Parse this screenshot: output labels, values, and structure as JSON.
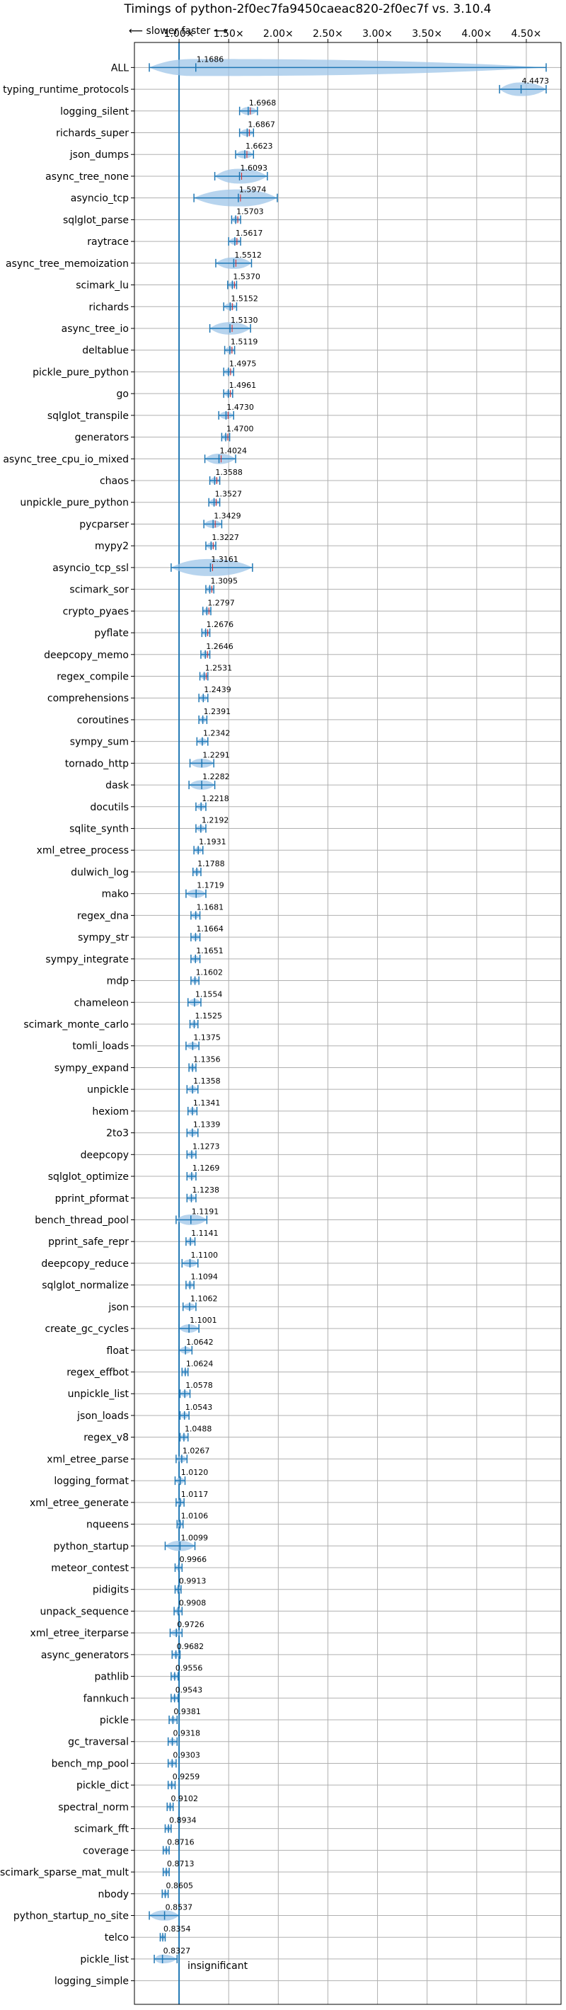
{
  "chart_data": {
    "type": "violin",
    "title": "Timings of python-2f0ec7fa9450caeac820-2f0ec7f vs. 3.10.4",
    "direction_label": "⟵ slower    faster ⟶",
    "x_ticks": [
      "1.00×",
      "1.50×",
      "2.00×",
      "2.50×",
      "3.00×",
      "3.50×",
      "4.00×",
      "4.50×"
    ],
    "x_tick_values": [
      1.0,
      1.5,
      2.0,
      2.5,
      3.0,
      3.5,
      4.0,
      4.5
    ],
    "xlim": [
      0.55,
      4.85
    ],
    "grid": true,
    "reference_line": 1.0,
    "reference_label": "insignificant",
    "colors": {
      "violin": "#9fc6e8",
      "line": "#1f77b4",
      "median": "#d62728"
    },
    "benchmarks": [
      {
        "name": "ALL",
        "label": "1.1686",
        "value": 1.1686,
        "lo": 0.7,
        "hi": 4.7
      },
      {
        "name": "typing_runtime_protocols",
        "label": "4.4473",
        "value": 4.4473,
        "lo": 4.23,
        "hi": 4.7
      },
      {
        "name": "logging_silent",
        "label": "1.6968",
        "value": 1.6968,
        "lo": 1.61,
        "hi": 1.79
      },
      {
        "name": "richards_super",
        "label": "1.6867",
        "value": 1.6867,
        "lo": 1.61,
        "hi": 1.75
      },
      {
        "name": "json_dumps",
        "label": "1.6623",
        "value": 1.6623,
        "lo": 1.57,
        "hi": 1.75
      },
      {
        "name": "async_tree_none",
        "label": "1.6093",
        "value": 1.6093,
        "lo": 1.36,
        "hi": 1.89
      },
      {
        "name": "asyncio_tcp",
        "label": "1.5974",
        "value": 1.5974,
        "lo": 1.15,
        "hi": 1.99
      },
      {
        "name": "sqlglot_parse",
        "label": "1.5703",
        "value": 1.5703,
        "lo": 1.53,
        "hi": 1.62
      },
      {
        "name": "raytrace",
        "label": "1.5617",
        "value": 1.5617,
        "lo": 1.5,
        "hi": 1.62
      },
      {
        "name": "async_tree_memoization",
        "label": "1.5512",
        "value": 1.5512,
        "lo": 1.37,
        "hi": 1.73
      },
      {
        "name": "scimark_lu",
        "label": "1.5370",
        "value": 1.537,
        "lo": 1.49,
        "hi": 1.58
      },
      {
        "name": "richards",
        "label": "1.5152",
        "value": 1.5152,
        "lo": 1.45,
        "hi": 1.58
      },
      {
        "name": "async_tree_io",
        "label": "1.5130",
        "value": 1.513,
        "lo": 1.31,
        "hi": 1.72
      },
      {
        "name": "deltablue",
        "label": "1.5119",
        "value": 1.5119,
        "lo": 1.46,
        "hi": 1.56
      },
      {
        "name": "pickle_pure_python",
        "label": "1.4975",
        "value": 1.4975,
        "lo": 1.45,
        "hi": 1.55
      },
      {
        "name": "go",
        "label": "1.4961",
        "value": 1.4961,
        "lo": 1.45,
        "hi": 1.54
      },
      {
        "name": "sqlglot_transpile",
        "label": "1.4730",
        "value": 1.473,
        "lo": 1.4,
        "hi": 1.55
      },
      {
        "name": "generators",
        "label": "1.4700",
        "value": 1.47,
        "lo": 1.43,
        "hi": 1.51
      },
      {
        "name": "async_tree_cpu_io_mixed",
        "label": "1.4024",
        "value": 1.4024,
        "lo": 1.26,
        "hi": 1.57
      },
      {
        "name": "chaos",
        "label": "1.3588",
        "value": 1.3588,
        "lo": 1.31,
        "hi": 1.41
      },
      {
        "name": "unpickle_pure_python",
        "label": "1.3527",
        "value": 1.3527,
        "lo": 1.3,
        "hi": 1.41
      },
      {
        "name": "pycparser",
        "label": "1.3429",
        "value": 1.3429,
        "lo": 1.25,
        "hi": 1.43
      },
      {
        "name": "mypy2",
        "label": "1.3227",
        "value": 1.3227,
        "lo": 1.27,
        "hi": 1.37
      },
      {
        "name": "asyncio_tcp_ssl",
        "label": "1.3161",
        "value": 1.3161,
        "lo": 0.92,
        "hi": 1.74
      },
      {
        "name": "scimark_sor",
        "label": "1.3095",
        "value": 1.3095,
        "lo": 1.27,
        "hi": 1.35
      },
      {
        "name": "crypto_pyaes",
        "label": "1.2797",
        "value": 1.2797,
        "lo": 1.24,
        "hi": 1.32
      },
      {
        "name": "pyflate",
        "label": "1.2676",
        "value": 1.2676,
        "lo": 1.23,
        "hi": 1.31
      },
      {
        "name": "deepcopy_memo",
        "label": "1.2646",
        "value": 1.2646,
        "lo": 1.22,
        "hi": 1.31
      },
      {
        "name": "regex_compile",
        "label": "1.2531",
        "value": 1.2531,
        "lo": 1.21,
        "hi": 1.29
      },
      {
        "name": "comprehensions",
        "label": "1.2439",
        "value": 1.2439,
        "lo": 1.2,
        "hi": 1.29
      },
      {
        "name": "coroutines",
        "label": "1.2391",
        "value": 1.2391,
        "lo": 1.2,
        "hi": 1.28
      },
      {
        "name": "sympy_sum",
        "label": "1.2342",
        "value": 1.2342,
        "lo": 1.18,
        "hi": 1.29
      },
      {
        "name": "tornado_http",
        "label": "1.2291",
        "value": 1.2291,
        "lo": 1.11,
        "hi": 1.35
      },
      {
        "name": "dask",
        "label": "1.2282",
        "value": 1.2282,
        "lo": 1.1,
        "hi": 1.36
      },
      {
        "name": "docutils",
        "label": "1.2218",
        "value": 1.2218,
        "lo": 1.17,
        "hi": 1.27
      },
      {
        "name": "sqlite_synth",
        "label": "1.2192",
        "value": 1.2192,
        "lo": 1.17,
        "hi": 1.27
      },
      {
        "name": "xml_etree_process",
        "label": "1.1931",
        "value": 1.1931,
        "lo": 1.15,
        "hi": 1.24
      },
      {
        "name": "dulwich_log",
        "label": "1.1788",
        "value": 1.1788,
        "lo": 1.14,
        "hi": 1.22
      },
      {
        "name": "mako",
        "label": "1.1719",
        "value": 1.1719,
        "lo": 1.07,
        "hi": 1.27
      },
      {
        "name": "regex_dna",
        "label": "1.1681",
        "value": 1.1681,
        "lo": 1.12,
        "hi": 1.21
      },
      {
        "name": "sympy_str",
        "label": "1.1664",
        "value": 1.1664,
        "lo": 1.12,
        "hi": 1.21
      },
      {
        "name": "sympy_integrate",
        "label": "1.1651",
        "value": 1.1651,
        "lo": 1.12,
        "hi": 1.21
      },
      {
        "name": "mdp",
        "label": "1.1602",
        "value": 1.1602,
        "lo": 1.12,
        "hi": 1.2
      },
      {
        "name": "chameleon",
        "label": "1.1554",
        "value": 1.1554,
        "lo": 1.09,
        "hi": 1.22
      },
      {
        "name": "scimark_monte_carlo",
        "label": "1.1525",
        "value": 1.1525,
        "lo": 1.11,
        "hi": 1.19
      },
      {
        "name": "tomli_loads",
        "label": "1.1375",
        "value": 1.1375,
        "lo": 1.07,
        "hi": 1.2
      },
      {
        "name": "sympy_expand",
        "label": "1.1356",
        "value": 1.1356,
        "lo": 1.1,
        "hi": 1.17
      },
      {
        "name": "unpickle",
        "label": "1.1358",
        "value": 1.1358,
        "lo": 1.08,
        "hi": 1.19
      },
      {
        "name": "hexiom",
        "label": "1.1341",
        "value": 1.1341,
        "lo": 1.09,
        "hi": 1.18
      },
      {
        "name": "2to3",
        "label": "1.1339",
        "value": 1.1339,
        "lo": 1.08,
        "hi": 1.19
      },
      {
        "name": "deepcopy",
        "label": "1.1273",
        "value": 1.1273,
        "lo": 1.08,
        "hi": 1.17
      },
      {
        "name": "sqlglot_optimize",
        "label": "1.1269",
        "value": 1.1269,
        "lo": 1.08,
        "hi": 1.17
      },
      {
        "name": "pprint_pformat",
        "label": "1.1238",
        "value": 1.1238,
        "lo": 1.08,
        "hi": 1.17
      },
      {
        "name": "bench_thread_pool",
        "label": "1.1191",
        "value": 1.1191,
        "lo": 0.97,
        "hi": 1.28
      },
      {
        "name": "pprint_safe_repr",
        "label": "1.1141",
        "value": 1.1141,
        "lo": 1.07,
        "hi": 1.16
      },
      {
        "name": "deepcopy_reduce",
        "label": "1.1100",
        "value": 1.11,
        "lo": 1.03,
        "hi": 1.19
      },
      {
        "name": "sqlglot_normalize",
        "label": "1.1094",
        "value": 1.1094,
        "lo": 1.07,
        "hi": 1.15
      },
      {
        "name": "json",
        "label": "1.1062",
        "value": 1.1062,
        "lo": 1.04,
        "hi": 1.17
      },
      {
        "name": "create_gc_cycles",
        "label": "1.1001",
        "value": 1.1001,
        "lo": 1.0,
        "hi": 1.2
      },
      {
        "name": "float",
        "label": "1.0642",
        "value": 1.0642,
        "lo": 1.0,
        "hi": 1.13
      },
      {
        "name": "regex_effbot",
        "label": "1.0624",
        "value": 1.0624,
        "lo": 1.03,
        "hi": 1.09
      },
      {
        "name": "unpickle_list",
        "label": "1.0578",
        "value": 1.0578,
        "lo": 1.01,
        "hi": 1.11
      },
      {
        "name": "json_loads",
        "label": "1.0543",
        "value": 1.0543,
        "lo": 1.01,
        "hi": 1.1
      },
      {
        "name": "regex_v8",
        "label": "1.0488",
        "value": 1.0488,
        "lo": 1.01,
        "hi": 1.09
      },
      {
        "name": "xml_etree_parse",
        "label": "1.0267",
        "value": 1.0267,
        "lo": 0.97,
        "hi": 1.08
      },
      {
        "name": "logging_format",
        "label": "1.0120",
        "value": 1.012,
        "lo": 0.96,
        "hi": 1.06
      },
      {
        "name": "xml_etree_generate",
        "label": "1.0117",
        "value": 1.0117,
        "lo": 0.97,
        "hi": 1.05
      },
      {
        "name": "nqueens",
        "label": "1.0106",
        "value": 1.0106,
        "lo": 0.98,
        "hi": 1.04
      },
      {
        "name": "python_startup",
        "label": "1.0099",
        "value": 1.0099,
        "lo": 0.86,
        "hi": 1.16
      },
      {
        "name": "meteor_contest",
        "label": "0.9966",
        "value": 0.9966,
        "lo": 0.96,
        "hi": 1.03
      },
      {
        "name": "pidigits",
        "label": "0.9913",
        "value": 0.9913,
        "lo": 0.96,
        "hi": 1.02
      },
      {
        "name": "unpack_sequence",
        "label": "0.9908",
        "value": 0.9908,
        "lo": 0.95,
        "hi": 1.03
      },
      {
        "name": "xml_etree_iterparse",
        "label": "0.9726",
        "value": 0.9726,
        "lo": 0.91,
        "hi": 1.03
      },
      {
        "name": "async_generators",
        "label": "0.9682",
        "value": 0.9682,
        "lo": 0.93,
        "hi": 1.01
      },
      {
        "name": "pathlib",
        "label": "0.9556",
        "value": 0.9556,
        "lo": 0.92,
        "hi": 0.99
      },
      {
        "name": "fannkuch",
        "label": "0.9543",
        "value": 0.9543,
        "lo": 0.92,
        "hi": 0.99
      },
      {
        "name": "pickle",
        "label": "0.9381",
        "value": 0.9381,
        "lo": 0.9,
        "hi": 0.98
      },
      {
        "name": "gc_traversal",
        "label": "0.9318",
        "value": 0.9318,
        "lo": 0.89,
        "hi": 0.98
      },
      {
        "name": "bench_mp_pool",
        "label": "0.9303",
        "value": 0.9303,
        "lo": 0.89,
        "hi": 0.97
      },
      {
        "name": "pickle_dict",
        "label": "0.9259",
        "value": 0.9259,
        "lo": 0.89,
        "hi": 0.96
      },
      {
        "name": "spectral_norm",
        "label": "0.9102",
        "value": 0.9102,
        "lo": 0.88,
        "hi": 0.94
      },
      {
        "name": "scimark_fft",
        "label": "0.8934",
        "value": 0.8934,
        "lo": 0.86,
        "hi": 0.92
      },
      {
        "name": "coverage",
        "label": "0.8716",
        "value": 0.8716,
        "lo": 0.84,
        "hi": 0.9
      },
      {
        "name": "scimark_sparse_mat_mult",
        "label": "0.8713",
        "value": 0.8713,
        "lo": 0.84,
        "hi": 0.9
      },
      {
        "name": "nbody",
        "label": "0.8605",
        "value": 0.8605,
        "lo": 0.83,
        "hi": 0.89
      },
      {
        "name": "python_startup_no_site",
        "label": "0.8537",
        "value": 0.8537,
        "lo": 0.7,
        "hi": 1.0
      },
      {
        "name": "telco",
        "label": "0.8354",
        "value": 0.8354,
        "lo": 0.81,
        "hi": 0.86
      },
      {
        "name": "pickle_list",
        "label": "0.8327",
        "value": 0.8327,
        "lo": 0.75,
        "hi": 0.98
      },
      {
        "name": "logging_simple",
        "label": "",
        "value": 1.0,
        "lo": 1.0,
        "hi": 1.0
      }
    ]
  }
}
